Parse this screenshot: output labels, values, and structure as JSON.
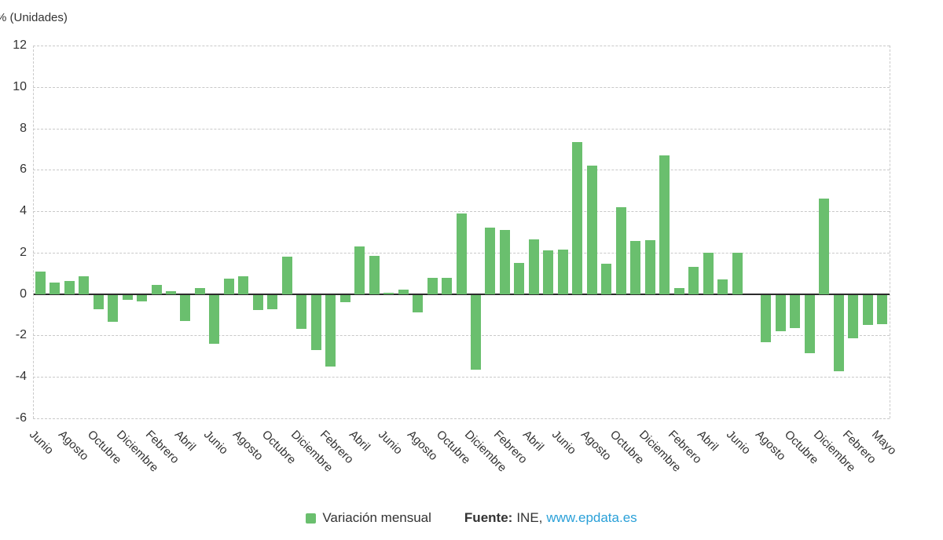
{
  "chart": {
    "y_axis_title": "% (Unidades)",
    "colors": {
      "bar": "#6abf6e",
      "grid": "#c9c9c9",
      "zero_line": "#2b2b2b",
      "text": "#333333",
      "link": "#2aa0d8"
    },
    "legend": {
      "series_label": "Variación mensual",
      "source_label": "Fuente:",
      "source_name": "INE,",
      "source_link": "www.epdata.es"
    }
  },
  "chart_data": {
    "type": "bar",
    "title": "",
    "ylabel": "% (Unidades)",
    "xlabel": "",
    "ylim": [
      -6,
      12
    ],
    "yticks": [
      12,
      10,
      8,
      6,
      4,
      2,
      0,
      -2,
      -4,
      -6
    ],
    "grid": true,
    "legend_position": "bottom",
    "categories": [
      "Junio",
      "",
      "Agosto",
      "",
      "Octubre",
      "",
      "Diciembre",
      "",
      "Febrero",
      "",
      "Abril",
      "",
      "Junio",
      "",
      "Agosto",
      "",
      "Octubre",
      "",
      "Diciembre",
      "",
      "Febrero",
      "",
      "Abril",
      "",
      "Junio",
      "",
      "Agosto",
      "",
      "Octubre",
      "",
      "Diciembre",
      "",
      "Febrero",
      "",
      "Abril",
      "",
      "Junio",
      "",
      "Agosto",
      "",
      "Octubre",
      "",
      "Diciembre",
      "",
      "Febrero",
      "",
      "Abril",
      "",
      "Junio",
      "",
      "Agosto",
      "",
      "Octubre",
      "",
      "Diciembre",
      "",
      "Febrero",
      "",
      "Mayo"
    ],
    "series": [
      {
        "name": "Variación mensual",
        "values": [
          1.1,
          0.55,
          0.65,
          0.85,
          -0.7,
          -1.3,
          -0.25,
          -0.3,
          0.45,
          0.15,
          -1.25,
          0.3,
          -2.35,
          0.75,
          0.85,
          -0.75,
          -0.7,
          1.8,
          -1.65,
          -2.65,
          -3.45,
          -0.35,
          2.3,
          1.85,
          0.05,
          0.2,
          -0.85,
          0.8,
          0.8,
          3.9,
          -3.6,
          3.2,
          3.1,
          1.5,
          2.65,
          2.1,
          2.15,
          7.35,
          6.2,
          1.45,
          4.2,
          2.55,
          2.6,
          6.7,
          0.3,
          1.3,
          2.0,
          0.7,
          2.0,
          0.0,
          -2.3,
          -1.75,
          -1.6,
          -2.8,
          4.6,
          -3.7,
          -2.1,
          -1.45,
          -1.4
        ]
      }
    ]
  }
}
